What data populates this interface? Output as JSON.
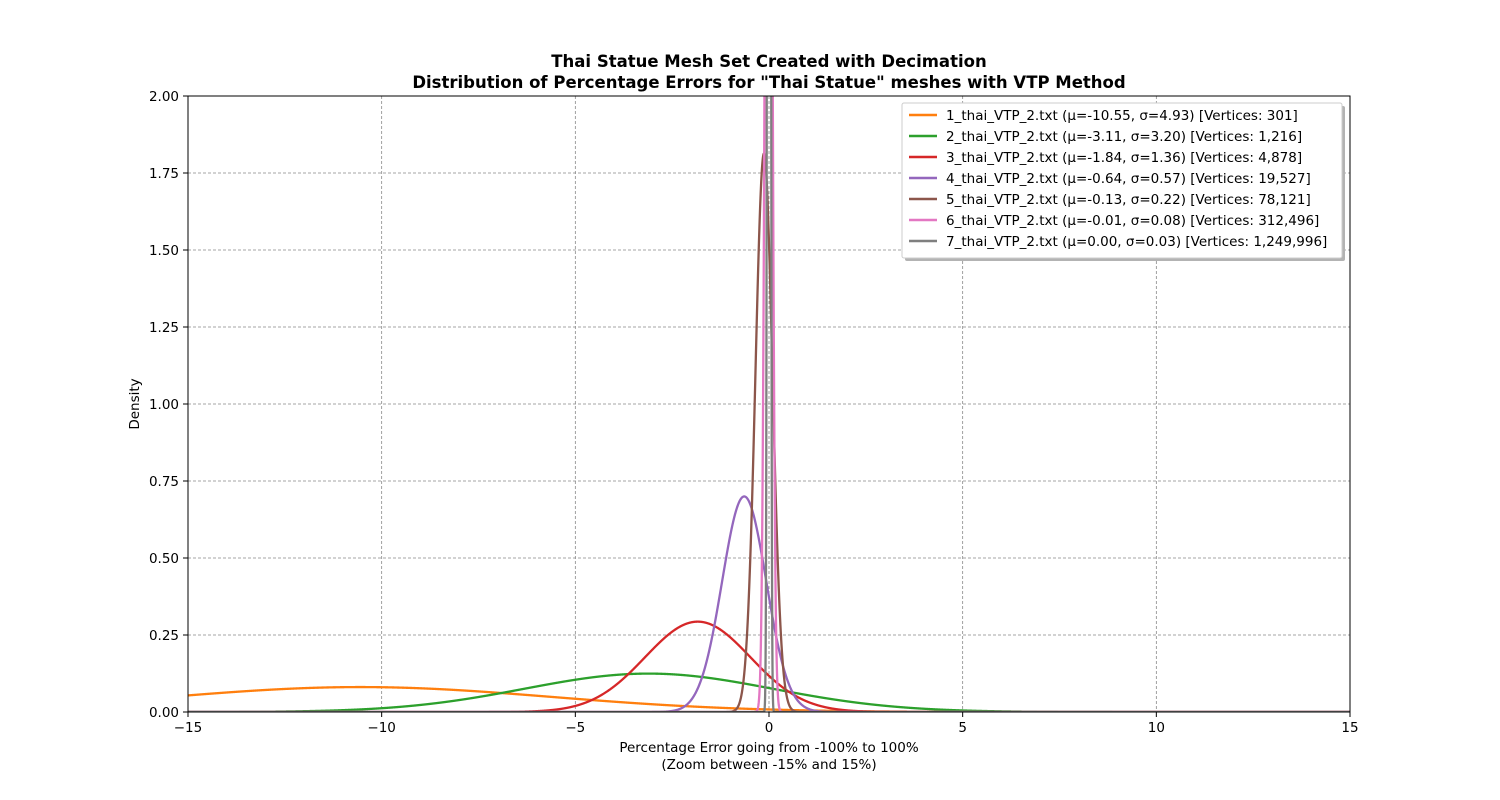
{
  "chart_data": {
    "type": "line",
    "title_lines": [
      "Thai Statue Mesh Set Created with Decimation",
      "Distribution of Percentage Errors for \"Thai Statue\" meshes with VTP Method"
    ],
    "xlabel_lines": [
      "Percentage Error going from -100% to 100%",
      "(Zoom between -15% and 15%)"
    ],
    "ylabel": "Density",
    "xlim": [
      -15,
      15
    ],
    "ylim": [
      0,
      2.0
    ],
    "x_ticks": [
      -15,
      -10,
      -5,
      0,
      5,
      10,
      15
    ],
    "x_tick_labels": [
      "−15",
      "−10",
      "−5",
      "0",
      "5",
      "10",
      "15"
    ],
    "y_ticks": [
      0,
      0.25,
      0.5,
      0.75,
      1.0,
      1.25,
      1.5,
      1.75,
      2.0
    ],
    "y_tick_labels": [
      "0.00",
      "0.25",
      "0.50",
      "0.75",
      "1.00",
      "1.25",
      "1.50",
      "1.75",
      "2.00"
    ],
    "grid": true,
    "legend_position": "top-right",
    "distribution": "normal",
    "series": [
      {
        "name": "1_thai_VTP_2.txt (μ=-10.55, σ=4.93) [Vertices: 301]",
        "mu": -10.55,
        "sigma": 4.93,
        "color": "#ff7f0e"
      },
      {
        "name": "2_thai_VTP_2.txt (μ=-3.11, σ=3.20) [Vertices: 1,216]",
        "mu": -3.11,
        "sigma": 3.2,
        "color": "#2ca02c"
      },
      {
        "name": "3_thai_VTP_2.txt (μ=-1.84, σ=1.36) [Vertices: 4,878]",
        "mu": -1.84,
        "sigma": 1.36,
        "color": "#d62728"
      },
      {
        "name": "4_thai_VTP_2.txt (μ=-0.64, σ=0.57) [Vertices: 19,527]",
        "mu": -0.64,
        "sigma": 0.57,
        "color": "#9467bd"
      },
      {
        "name": "5_thai_VTP_2.txt (μ=-0.13, σ=0.22) [Vertices: 78,121]",
        "mu": -0.13,
        "sigma": 0.22,
        "color": "#8c564b"
      },
      {
        "name": "6_thai_VTP_2.txt (μ=-0.01, σ=0.08) [Vertices: 312,496]",
        "mu": -0.01,
        "sigma": 0.08,
        "color": "#e377c2"
      },
      {
        "name": "7_thai_VTP_2.txt (μ=0.00, σ=0.03) [Vertices: 1,249,996]",
        "mu": 0.0,
        "sigma": 0.03,
        "color": "#7f7f7f"
      }
    ]
  }
}
